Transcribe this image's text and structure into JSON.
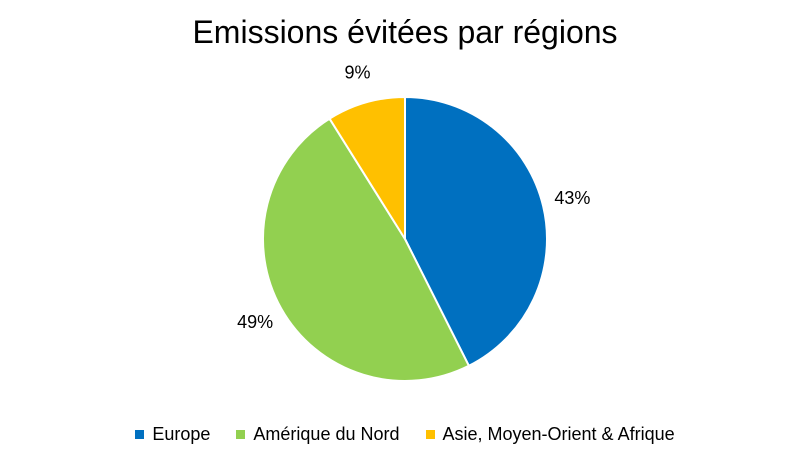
{
  "chart_data": {
    "type": "pie",
    "title": "Emissions évitées par régions",
    "categories": [
      "Europe",
      "Amérique du Nord",
      "Asie, Moyen-Orient & Afrique"
    ],
    "values": [
      43,
      49,
      9
    ],
    "labels": [
      "43%",
      "49%",
      "9%"
    ],
    "colors": [
      "#0070C0",
      "#92D050",
      "#FFC000"
    ],
    "start_angle_deg": 0,
    "direction": "clockwise",
    "legend_position": "bottom"
  }
}
